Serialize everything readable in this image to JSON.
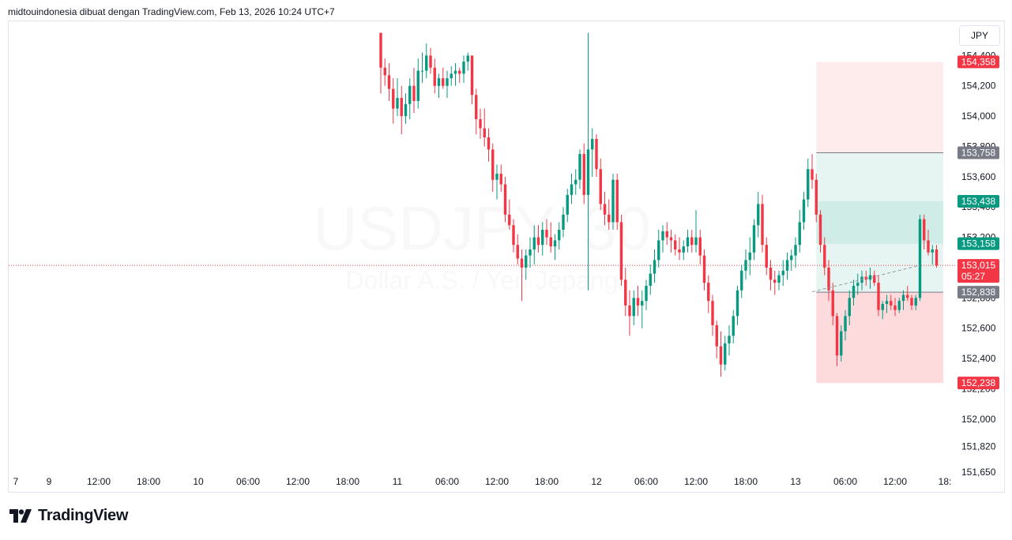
{
  "header": {
    "caption": "midtouindonesia dibuat dengan TradingView.com, Feb 13, 2026 10:24 UTC+7"
  },
  "currency_label": "JPY",
  "brand": {
    "name": "TradingView",
    "icon": "tradingview-logo-icon"
  },
  "watermark": {
    "symbol": "USDJPY, 30",
    "description": "Dollar A.S. / Yen Jepang"
  },
  "colors": {
    "up": "#089981",
    "down": "#f23645",
    "last_price": "#f23645",
    "target_fill": "#089981",
    "stop_fill": "#f23645",
    "grey_tag": "#787b86"
  },
  "chart_data": {
    "type": "candlestick",
    "symbol": "USDJPY",
    "interval": "30",
    "ylim": [
      151.65,
      154.6
    ],
    "y_ticks": [
      {
        "value": 154.4,
        "label": "154,400"
      },
      {
        "value": 154.2,
        "label": "154,200"
      },
      {
        "value": 154.0,
        "label": "154,000"
      },
      {
        "value": 153.8,
        "label": "153,800"
      },
      {
        "value": 153.6,
        "label": "153,600"
      },
      {
        "value": 153.4,
        "label": "153,400"
      },
      {
        "value": 153.2,
        "label": "153,200"
      },
      {
        "value": 153.0,
        "label": "153,000"
      },
      {
        "value": 152.8,
        "label": "152,800"
      },
      {
        "value": 152.6,
        "label": "152,600"
      },
      {
        "value": 152.4,
        "label": "152,400"
      },
      {
        "value": 152.2,
        "label": "152,200"
      },
      {
        "value": 152.0,
        "label": "152,000"
      },
      {
        "value": 151.82,
        "label": "151,820"
      },
      {
        "value": 151.65,
        "label": "151,650"
      }
    ],
    "x_ticks": [
      {
        "bar": -8,
        "label": "7"
      },
      {
        "bar": 0,
        "label": "9"
      },
      {
        "bar": 12,
        "label": "12:00"
      },
      {
        "bar": 24,
        "label": "18:00"
      },
      {
        "bar": 36,
        "label": "10"
      },
      {
        "bar": 48,
        "label": "06:00"
      },
      {
        "bar": 60,
        "label": "12:00"
      },
      {
        "bar": 72,
        "label": "18:00"
      },
      {
        "bar": 84,
        "label": "11"
      },
      {
        "bar": 96,
        "label": "06:00"
      },
      {
        "bar": 108,
        "label": "12:00"
      },
      {
        "bar": 120,
        "label": "18:00"
      },
      {
        "bar": 132,
        "label": "12"
      },
      {
        "bar": 144,
        "label": "06:00"
      },
      {
        "bar": 156,
        "label": "12:00"
      },
      {
        "bar": 168,
        "label": "18:00"
      },
      {
        "bar": 180,
        "label": "13"
      },
      {
        "bar": 192,
        "label": "06:00"
      },
      {
        "bar": 204,
        "label": "12:00"
      },
      {
        "bar": 216,
        "label": "18:"
      }
    ],
    "first_bar": 80,
    "candles": [
      [
        154.55,
        154.55,
        154.15,
        154.32
      ],
      [
        154.32,
        154.38,
        154.2,
        154.27
      ],
      [
        154.27,
        154.35,
        154.1,
        154.18
      ],
      [
        154.18,
        154.25,
        153.95,
        154.05
      ],
      [
        154.05,
        154.25,
        154.0,
        154.12
      ],
      [
        154.12,
        154.2,
        153.88,
        154.0
      ],
      [
        154.0,
        154.15,
        153.95,
        154.08
      ],
      [
        154.08,
        154.25,
        153.98,
        154.2
      ],
      [
        154.2,
        154.32,
        154.02,
        154.1
      ],
      [
        154.1,
        154.38,
        154.05,
        154.3
      ],
      [
        154.3,
        154.42,
        154.22,
        154.3
      ],
      [
        154.3,
        154.48,
        154.25,
        154.4
      ],
      [
        154.4,
        154.45,
        154.28,
        154.32
      ],
      [
        154.32,
        154.38,
        154.15,
        154.2
      ],
      [
        154.2,
        154.28,
        154.12,
        154.25
      ],
      [
        154.25,
        154.32,
        154.18,
        154.2
      ],
      [
        154.2,
        154.3,
        154.12,
        154.25
      ],
      [
        154.25,
        154.33,
        154.2,
        154.28
      ],
      [
        154.28,
        154.35,
        154.2,
        154.3
      ],
      [
        154.3,
        154.32,
        154.22,
        154.28
      ],
      [
        154.28,
        154.4,
        154.22,
        154.36
      ],
      [
        154.36,
        154.42,
        154.3,
        154.4
      ],
      [
        154.4,
        154.4,
        154.08,
        154.14
      ],
      [
        154.14,
        154.18,
        153.88,
        153.98
      ],
      [
        153.98,
        154.05,
        153.85,
        153.92
      ],
      [
        153.92,
        154.05,
        153.8,
        153.86
      ],
      [
        153.86,
        153.92,
        153.7,
        153.78
      ],
      [
        153.78,
        153.82,
        153.5,
        153.58
      ],
      [
        153.58,
        153.68,
        153.45,
        153.62
      ],
      [
        153.62,
        153.68,
        153.5,
        153.55
      ],
      [
        153.55,
        153.6,
        153.3,
        153.35
      ],
      [
        153.35,
        153.45,
        153.25,
        153.28
      ],
      [
        153.28,
        153.32,
        153.1,
        153.15
      ],
      [
        153.15,
        153.22,
        153.02,
        153.06
      ],
      [
        153.06,
        153.12,
        152.78,
        153.0
      ],
      [
        153.0,
        153.12,
        152.92,
        153.08
      ],
      [
        153.08,
        153.2,
        153.0,
        153.12
      ],
      [
        153.12,
        153.28,
        153.02,
        153.2
      ],
      [
        153.2,
        153.28,
        153.1,
        153.15
      ],
      [
        153.15,
        153.3,
        153.08,
        153.25
      ],
      [
        153.25,
        153.32,
        153.15,
        153.2
      ],
      [
        153.2,
        153.3,
        153.1,
        153.14
      ],
      [
        153.14,
        153.22,
        153.05,
        153.18
      ],
      [
        153.18,
        153.3,
        153.12,
        153.25
      ],
      [
        153.25,
        153.4,
        153.2,
        153.35
      ],
      [
        153.35,
        153.52,
        153.3,
        153.48
      ],
      [
        153.48,
        153.62,
        153.42,
        153.55
      ],
      [
        153.55,
        153.65,
        153.48,
        153.58
      ],
      [
        153.58,
        153.78,
        153.52,
        153.75
      ],
      [
        153.75,
        153.82,
        153.42,
        153.48
      ],
      [
        153.48,
        154.55,
        152.85,
        153.78
      ],
      [
        153.78,
        153.92,
        153.6,
        153.85
      ],
      [
        153.85,
        153.88,
        153.6,
        153.65
      ],
      [
        153.65,
        153.72,
        153.38,
        153.42
      ],
      [
        153.42,
        153.5,
        153.28,
        153.35
      ],
      [
        153.35,
        153.45,
        153.25,
        153.3
      ],
      [
        153.3,
        153.62,
        153.25,
        153.58
      ],
      [
        153.58,
        153.62,
        153.25,
        153.3
      ],
      [
        153.3,
        153.35,
        152.88,
        152.92
      ],
      [
        152.92,
        153.0,
        152.68,
        152.75
      ],
      [
        152.75,
        152.85,
        152.55,
        152.68
      ],
      [
        152.68,
        152.85,
        152.62,
        152.8
      ],
      [
        152.8,
        152.88,
        152.68,
        152.75
      ],
      [
        152.75,
        152.85,
        152.6,
        152.78
      ],
      [
        152.78,
        152.92,
        152.72,
        152.88
      ],
      [
        152.88,
        153.02,
        152.82,
        152.96
      ],
      [
        152.96,
        153.12,
        152.9,
        153.05
      ],
      [
        153.05,
        153.25,
        153.0,
        153.18
      ],
      [
        153.18,
        153.28,
        153.1,
        153.24
      ],
      [
        153.24,
        153.3,
        153.15,
        153.2
      ],
      [
        153.2,
        153.25,
        153.1,
        153.18
      ],
      [
        153.18,
        153.22,
        153.08,
        153.12
      ],
      [
        153.12,
        153.2,
        153.05,
        153.1
      ],
      [
        153.1,
        153.18,
        153.05,
        153.14
      ],
      [
        153.14,
        153.25,
        153.1,
        153.2
      ],
      [
        153.2,
        153.25,
        153.1,
        153.15
      ],
      [
        153.15,
        153.38,
        153.1,
        153.2
      ],
      [
        153.2,
        153.25,
        153.02,
        153.08
      ],
      [
        153.08,
        153.12,
        152.85,
        152.9
      ],
      [
        152.9,
        152.95,
        152.7,
        152.78
      ],
      [
        152.78,
        152.82,
        152.55,
        152.62
      ],
      [
        152.62,
        152.65,
        152.4,
        152.48
      ],
      [
        152.48,
        152.58,
        152.28,
        152.36
      ],
      [
        152.36,
        152.55,
        152.32,
        152.5
      ],
      [
        152.5,
        152.62,
        152.42,
        152.55
      ],
      [
        152.55,
        152.72,
        152.5,
        152.68
      ],
      [
        152.68,
        152.88,
        152.62,
        152.85
      ],
      [
        152.85,
        153.02,
        152.8,
        152.98
      ],
      [
        152.98,
        153.12,
        152.92,
        153.05
      ],
      [
        153.05,
        153.2,
        152.95,
        153.1
      ],
      [
        153.1,
        153.32,
        153.05,
        153.28
      ],
      [
        153.28,
        153.5,
        153.2,
        153.42
      ],
      [
        153.42,
        153.48,
        153.1,
        153.15
      ],
      [
        153.15,
        153.2,
        152.95,
        153.0
      ],
      [
        153.0,
        153.05,
        152.85,
        152.92
      ],
      [
        152.92,
        152.98,
        152.82,
        152.9
      ],
      [
        152.9,
        152.98,
        152.85,
        152.95
      ],
      [
        152.95,
        153.05,
        152.88,
        152.98
      ],
      [
        152.98,
        153.1,
        152.92,
        153.05
      ],
      [
        153.05,
        153.12,
        152.98,
        153.08
      ],
      [
        153.08,
        153.2,
        153.0,
        153.15
      ],
      [
        153.15,
        153.38,
        153.1,
        153.3
      ],
      [
        153.3,
        153.5,
        153.25,
        153.45
      ],
      [
        153.45,
        153.72,
        153.4,
        153.65
      ],
      [
        153.65,
        153.75,
        153.52,
        153.58
      ],
      [
        153.58,
        153.62,
        153.3,
        153.35
      ],
      [
        153.35,
        153.38,
        153.1,
        153.15
      ],
      [
        153.15,
        153.2,
        152.95,
        153.0
      ],
      [
        153.0,
        153.05,
        152.78,
        152.85
      ],
      [
        152.85,
        152.9,
        152.62,
        152.68
      ],
      [
        152.68,
        152.7,
        152.35,
        152.42
      ],
      [
        152.42,
        152.62,
        152.38,
        152.58
      ],
      [
        152.58,
        152.72,
        152.52,
        152.68
      ],
      [
        152.68,
        152.85,
        152.62,
        152.8
      ],
      [
        152.8,
        152.92,
        152.75,
        152.88
      ],
      [
        152.88,
        152.96,
        152.82,
        152.9
      ],
      [
        152.9,
        152.98,
        152.85,
        152.94
      ],
      [
        152.94,
        152.98,
        152.88,
        152.92
      ],
      [
        152.92,
        153.0,
        152.86,
        152.95
      ],
      [
        152.95,
        152.98,
        152.88,
        152.9
      ],
      [
        152.9,
        152.95,
        152.68,
        152.72
      ],
      [
        152.72,
        152.78,
        152.66,
        152.76
      ],
      [
        152.76,
        152.82,
        152.7,
        152.78
      ],
      [
        152.78,
        152.82,
        152.72,
        152.75
      ],
      [
        152.75,
        152.8,
        152.68,
        152.72
      ],
      [
        152.72,
        152.8,
        152.7,
        152.78
      ],
      [
        152.78,
        152.85,
        152.72,
        152.82
      ],
      [
        152.82,
        152.88,
        152.78,
        152.8
      ],
      [
        152.8,
        152.82,
        152.72,
        152.75
      ],
      [
        152.75,
        152.82,
        152.72,
        152.8
      ],
      [
        152.8,
        153.35,
        152.78,
        153.32
      ],
      [
        153.32,
        153.35,
        153.12,
        153.18
      ],
      [
        153.18,
        153.25,
        153.08,
        153.1
      ],
      [
        153.1,
        153.15,
        153.02,
        153.12
      ],
      [
        153.12,
        153.15,
        153.0,
        153.015
      ]
    ],
    "last_price": {
      "value": 153.015,
      "label": "153,015",
      "countdown": "05:27"
    },
    "price_tags": [
      {
        "value": 154.358,
        "label": "154,358",
        "color": "#f23645"
      },
      {
        "value": 153.758,
        "label": "153,758",
        "color": "#787b86"
      },
      {
        "value": 153.438,
        "label": "153,438",
        "color": "#089981"
      },
      {
        "value": 153.158,
        "label": "153,158",
        "color": "#089981"
      },
      {
        "value": 152.838,
        "label": "152,838",
        "color": "#787b86"
      },
      {
        "value": 152.238,
        "label": "152,238",
        "color": "#f23645"
      }
    ],
    "zones": [
      {
        "bar_start": 185,
        "top": 154.358,
        "bottom": 153.758,
        "color": "#f23645",
        "opacity": 0.1
      },
      {
        "bar_start": 185,
        "top": 153.758,
        "bottom": 152.838,
        "color": "#089981",
        "opacity": 0.1
      },
      {
        "bar_start": 185,
        "top": 153.438,
        "bottom": 153.158,
        "color": "#089981",
        "opacity": 0.1
      },
      {
        "bar_start": 185,
        "top": 152.838,
        "bottom": 152.238,
        "color": "#f23645",
        "opacity": 0.18
      }
    ],
    "zone_lines": [
      153.758,
      152.838
    ],
    "trendline": {
      "from": [
        184,
        152.84
      ],
      "to": [
        210,
        153.015
      ]
    }
  }
}
